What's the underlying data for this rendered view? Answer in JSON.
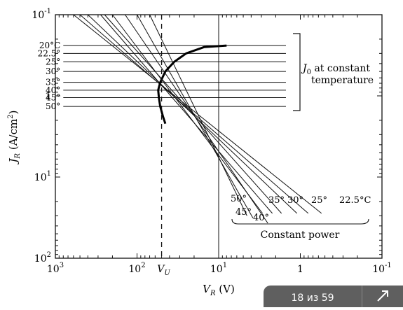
{
  "chart_data": {
    "type": "line",
    "xlabel_main": "V",
    "xlabel_sub": "R",
    "xlabel_unit": " (V)",
    "ylabel_main": "J",
    "ylabel_sub": "R",
    "ylabel_unit": " (A/cm",
    "ylabel_sup": "2",
    "ylabel_close": ")",
    "x_scale": "log",
    "x_reversed": true,
    "xlim": [
      1000,
      0.1
    ],
    "y_scale": "log",
    "y_reversed": true,
    "ylim": [
      0.1,
      100
    ],
    "x_ticks": [
      {
        "mant": "10",
        "exp": "3",
        "value": 1000
      },
      {
        "mant": "10",
        "exp": "2",
        "value": 100
      },
      {
        "mant": "10",
        "exp": "1",
        "value": 10
      },
      {
        "mant": "1",
        "exp": "",
        "value": 1
      },
      {
        "mant": "10",
        "exp": "-1",
        "value": 0.1
      }
    ],
    "y_ticks": [
      {
        "mant": "10",
        "exp": "-1",
        "value": 0.1
      },
      {
        "mant": "1",
        "exp": "",
        "value": 1
      },
      {
        "mant": "10",
        "exp": "1",
        "value": 10
      },
      {
        "mant": "10",
        "exp": "2",
        "value": 100
      }
    ],
    "vu_label_main": "V",
    "vu_label_sub": "U",
    "vu_value": 50,
    "vline_value": 10,
    "constant_temperature_J0": [
      {
        "label": "20°C",
        "value": 0.24
      },
      {
        "label": "22.5°",
        "value": 0.3
      },
      {
        "label": "25°",
        "value": 0.38
      },
      {
        "label": "30°",
        "value": 0.5
      },
      {
        "label": "35°",
        "value": 0.68
      },
      {
        "label": "40°",
        "value": 0.85
      },
      {
        "label": "45°",
        "value": 1.05
      },
      {
        "label": "50°",
        "value": 1.35
      }
    ],
    "j0_temperature_xrange": [
      800,
      1.5
    ],
    "constant_power_lines": [
      {
        "label": "22.5°C",
        "V": [
          600,
          0.55
        ],
        "J": [
          0.1,
          28
        ]
      },
      {
        "label": "25°",
        "V": [
          400,
          1.1
        ],
        "J": [
          0.1,
          28
        ]
      },
      {
        "label": "30°",
        "V": [
          280,
          2.2
        ],
        "J": [
          0.1,
          28
        ]
      },
      {
        "label": "35°",
        "V": [
          200,
          2.9
        ],
        "J": [
          0.1,
          28
        ]
      },
      {
        "label": "40°",
        "V": [
          140,
          2.5
        ],
        "J": [
          0.1,
          37
        ]
      },
      {
        "label": "45°",
        "V": [
          100,
          3.8
        ],
        "J": [
          0.1,
          32
        ]
      },
      {
        "label": "50°",
        "V": [
          70,
          4.5
        ],
        "J": [
          0.1,
          30
        ]
      },
      {
        "label": "",
        "V": [
          500,
          0.8
        ],
        "J": [
          0.1,
          28
        ]
      },
      {
        "label": "",
        "V": [
          250,
          1.7
        ],
        "J": [
          0.1,
          28
        ]
      }
    ],
    "locus_curve": {
      "V": [
        8,
        15,
        25,
        35,
        45,
        52,
        55,
        54,
        52,
        48,
        45
      ],
      "J": [
        0.24,
        0.25,
        0.3,
        0.38,
        0.5,
        0.68,
        0.85,
        1.05,
        1.35,
        1.8,
        2.2
      ]
    },
    "annotation_j0_main": "J",
    "annotation_j0_sub": "0",
    "annotation_j0_rest": " at constant",
    "annotation_j0_line2": "temperature",
    "annotation_constant_power": "Constant power"
  },
  "viewer": {
    "page_indicator": "18 из 59",
    "expand_icon": "expand-arrow-icon"
  }
}
